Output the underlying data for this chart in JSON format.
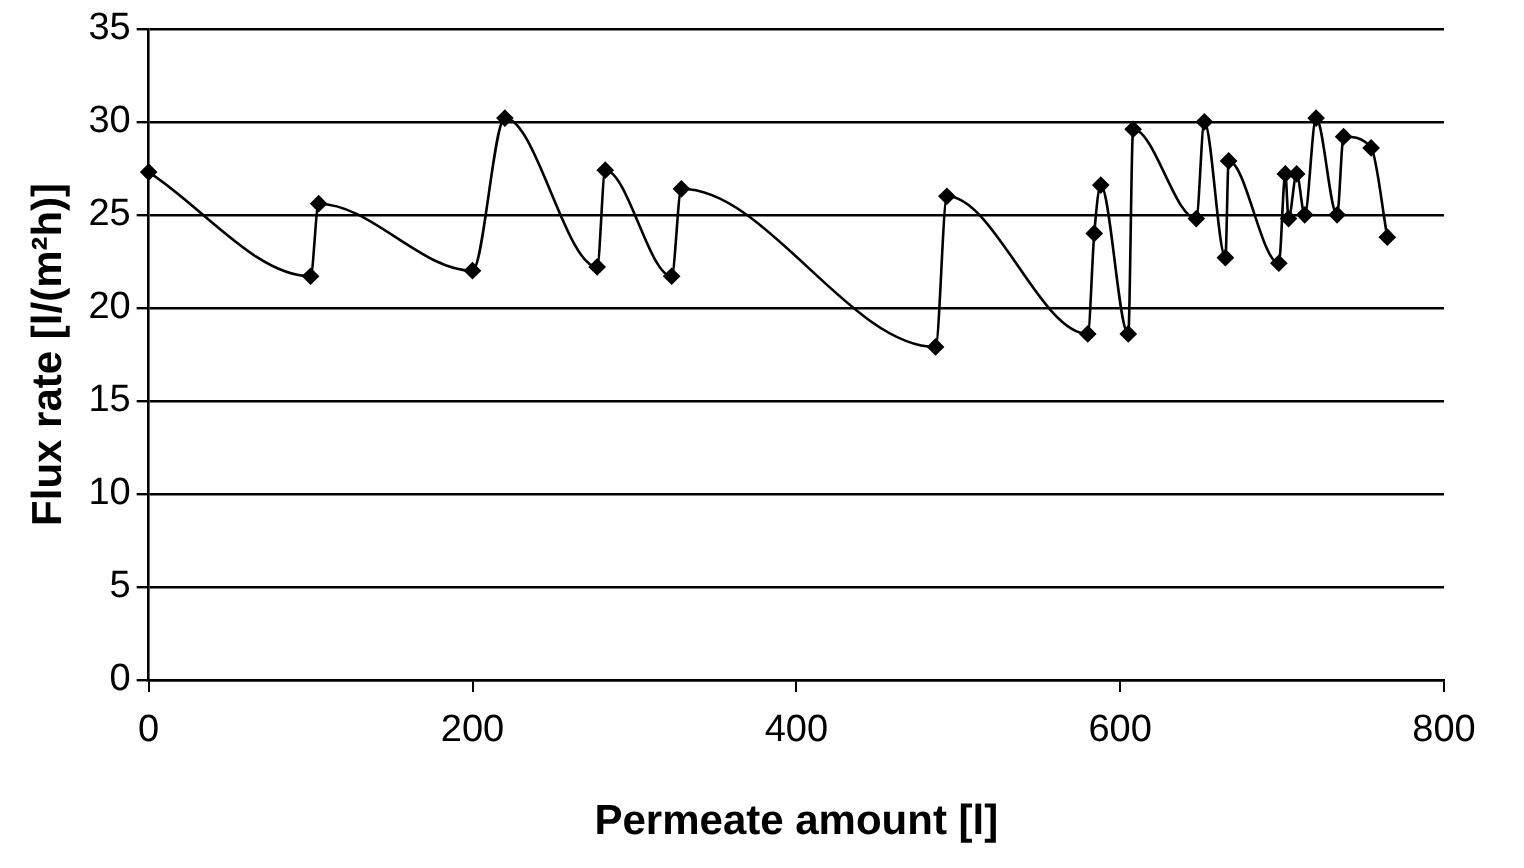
{
  "chart_data": {
    "type": "line",
    "xlabel": "Permeate amount [l]",
    "ylabel": "Flux rate [l/(m²h)]",
    "x": [
      0,
      100,
      105,
      200,
      220,
      277,
      282,
      323,
      329,
      486,
      493,
      580,
      584,
      588,
      605,
      608,
      647,
      652,
      665,
      667,
      698,
      702,
      704,
      709,
      714,
      721,
      734,
      738,
      755,
      765
    ],
    "series": [
      {
        "color": "#000000",
        "values": [
          27.3,
          21.7,
          25.6,
          22,
          30.2,
          22.2,
          27.4,
          21.7,
          26.4,
          17.9,
          26,
          18.6,
          24,
          26.6,
          18.6,
          29.6,
          24.8,
          30,
          22.7,
          27.9,
          22.4,
          27.2,
          24.8,
          27.2,
          25,
          30.2,
          25,
          29.2,
          28.6,
          23.8
        ]
      }
    ],
    "xlim": [
      0,
      800
    ],
    "xticks": [
      0,
      200,
      400,
      600,
      800
    ],
    "ylim": [
      0,
      35
    ],
    "yticks": [
      0,
      5,
      10,
      15,
      20,
      25,
      30,
      35
    ],
    "grid": "y",
    "legend": false,
    "marker": "diamond",
    "line_style": "solid"
  }
}
